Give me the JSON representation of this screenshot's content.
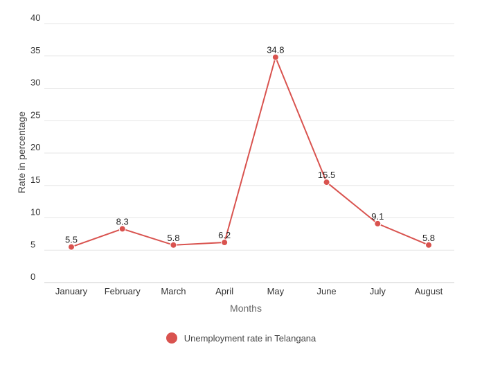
{
  "chart_data": {
    "type": "line",
    "categories": [
      "January",
      "February",
      "March",
      "April",
      "May",
      "June",
      "July",
      "August"
    ],
    "series": [
      {
        "name": "Unemployment rate in Telangana",
        "values": [
          5.5,
          8.3,
          5.8,
          6.2,
          34.8,
          15.5,
          9.1,
          5.8
        ]
      }
    ],
    "data_labels": [
      "5.5",
      "8.3",
      "5.8",
      "6.2",
      "34.8",
      "15.5",
      "9.1",
      "5.8"
    ],
    "ylabel": "Rate in percentage",
    "xlabel": "Months",
    "ylim": [
      0,
      40
    ],
    "yticks": [
      0,
      5,
      10,
      15,
      20,
      25,
      30,
      35,
      40
    ],
    "grid": true,
    "legend_position": "bottom",
    "colors": {
      "series": "#d9534f",
      "grid": "#e6e6e6",
      "text": "#333333"
    }
  }
}
